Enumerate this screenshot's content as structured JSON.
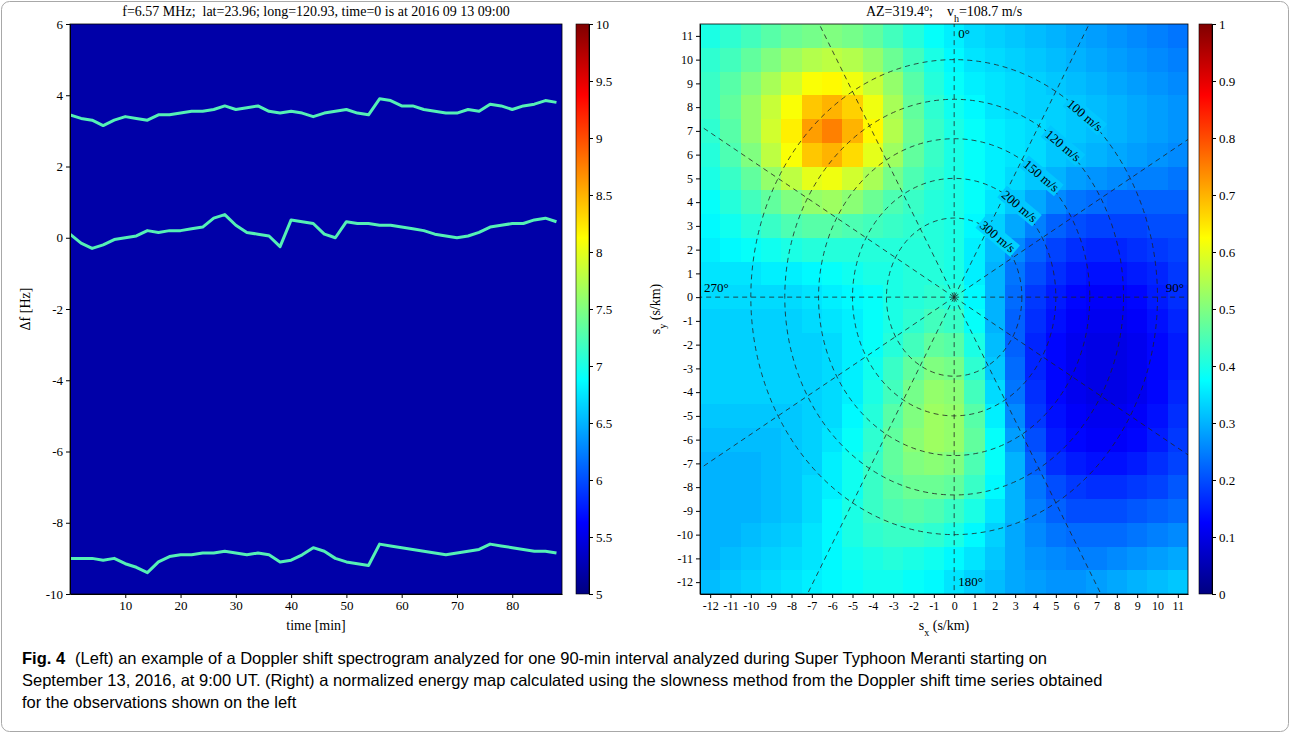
{
  "chart_data": [
    {
      "type": "spectrogram",
      "title": "f=6.57 MHz;  lat=23.96; long=120.93, time=0 is at 2016 09 13 09:00",
      "xlabel": "time [min]",
      "ylabel": "Δf [Hz]",
      "xlim": [
        0,
        89
      ],
      "xticks": [
        10,
        20,
        30,
        40,
        50,
        60,
        70,
        80
      ],
      "ylim": [
        -10,
        6
      ],
      "yticks": [
        -10,
        -8,
        -6,
        -4,
        -2,
        0,
        2,
        4,
        6
      ],
      "background_level": 5.2,
      "colorbar": {
        "lim": [
          5,
          10
        ],
        "ticks": [
          5,
          5.5,
          6,
          6.5,
          7,
          7.5,
          8,
          8.5,
          9,
          9.5,
          10
        ]
      },
      "x": [
        0,
        2,
        4,
        6,
        8,
        10,
        12,
        14,
        16,
        18,
        20,
        22,
        24,
        26,
        28,
        30,
        32,
        34,
        36,
        38,
        40,
        42,
        44,
        46,
        48,
        50,
        52,
        54,
        56,
        58,
        60,
        62,
        64,
        66,
        68,
        70,
        72,
        74,
        76,
        78,
        80,
        82,
        84,
        86,
        88
      ],
      "series": [
        {
          "color": "#55f0b5",
          "values": [
            3.45,
            3.35,
            3.3,
            3.15,
            3.3,
            3.4,
            3.35,
            3.3,
            3.45,
            3.45,
            3.5,
            3.55,
            3.55,
            3.6,
            3.7,
            3.6,
            3.65,
            3.7,
            3.55,
            3.5,
            3.55,
            3.5,
            3.4,
            3.5,
            3.55,
            3.6,
            3.5,
            3.45,
            3.9,
            3.85,
            3.7,
            3.7,
            3.6,
            3.55,
            3.5,
            3.5,
            3.6,
            3.55,
            3.75,
            3.7,
            3.6,
            3.7,
            3.75,
            3.85,
            3.8
          ]
        },
        {
          "color": "#55f0b5",
          "values": [
            0.1,
            -0.15,
            -0.3,
            -0.2,
            -0.05,
            0,
            0.05,
            0.2,
            0.15,
            0.2,
            0.2,
            0.25,
            0.3,
            0.55,
            0.65,
            0.35,
            0.15,
            0.1,
            0.05,
            -0.25,
            0.5,
            0.45,
            0.4,
            0.1,
            0,
            0.45,
            0.4,
            0.4,
            0.35,
            0.35,
            0.3,
            0.25,
            0.2,
            0.1,
            0.05,
            0,
            0.05,
            0.15,
            0.3,
            0.35,
            0.4,
            0.4,
            0.5,
            0.55,
            0.45
          ]
        },
        {
          "color": "#55f0b5",
          "values": [
            -9.0,
            -9.0,
            -9.0,
            -9.05,
            -9.0,
            -9.15,
            -9.25,
            -9.4,
            -9.1,
            -8.95,
            -8.9,
            -8.9,
            -8.85,
            -8.85,
            -8.8,
            -8.85,
            -8.9,
            -8.85,
            -8.9,
            -9.1,
            -9.05,
            -8.9,
            -8.7,
            -8.8,
            -9.0,
            -9.1,
            -9.15,
            -9.2,
            -8.6,
            -8.65,
            -8.7,
            -8.75,
            -8.8,
            -8.85,
            -8.9,
            -8.85,
            -8.8,
            -8.75,
            -8.6,
            -8.65,
            -8.7,
            -8.75,
            -8.8,
            -8.8,
            -8.85
          ]
        }
      ]
    },
    {
      "type": "heatmap",
      "title": [
        {
          "text": "AZ=319.4"
        },
        {
          "text": "o",
          "sup": true
        },
        {
          "text": ";    v"
        },
        {
          "text": "h",
          "sub": true
        },
        {
          "text": "=108.7 m/s"
        }
      ],
      "xlabel": [
        {
          "text": "s"
        },
        {
          "text": "x",
          "sub": true
        },
        {
          "text": " (s/km)"
        }
      ],
      "ylabel": [
        {
          "text": "s"
        },
        {
          "text": "y",
          "sub": true
        },
        {
          "text": " (s/km)"
        }
      ],
      "xlim": [
        -12.5,
        11.5
      ],
      "xticks": [
        -12,
        -11,
        -10,
        -9,
        -8,
        -7,
        -6,
        -5,
        -4,
        -3,
        -2,
        -1,
        0,
        1,
        2,
        3,
        4,
        5,
        6,
        7,
        8,
        9,
        10,
        11
      ],
      "ylim": [
        -12.5,
        11.5
      ],
      "yticks": [
        -12,
        -11,
        -10,
        -9,
        -8,
        -7,
        -6,
        -5,
        -4,
        -3,
        -2,
        -1,
        0,
        1,
        2,
        3,
        4,
        5,
        6,
        7,
        8,
        9,
        10,
        11
      ],
      "colorbar": {
        "lim": [
          0,
          1
        ],
        "ticks": [
          0,
          0.1,
          0.2,
          0.3,
          0.4,
          0.5,
          0.6,
          0.7,
          0.8,
          0.9,
          1
        ]
      },
      "rings": [
        {
          "radius": 10,
          "label": "100 m/s"
        },
        {
          "radius": 8.33,
          "label": "120 m/s"
        },
        {
          "radius": 6.67,
          "label": "150 m/s"
        },
        {
          "radius": 5,
          "label": "200 m/s"
        },
        {
          "radius": 3.33,
          "label": "300 m/s"
        }
      ],
      "spokes": [
        0,
        30,
        60,
        90,
        120,
        150,
        180,
        210,
        240,
        270,
        300,
        330
      ],
      "spoke_labels": [
        {
          "value": 0,
          "label": "0°"
        },
        {
          "value": 90,
          "label": "90°"
        },
        {
          "value": 180,
          "label": "180°"
        },
        {
          "value": 270,
          "label": "270°"
        }
      ],
      "sx": [
        -12,
        -11,
        -10,
        -9,
        -8,
        -7,
        -6,
        -5,
        -4,
        -3,
        -2,
        -1,
        0,
        1,
        2,
        3,
        4,
        5,
        6,
        7,
        8,
        9,
        10,
        11
      ],
      "sy": [
        11,
        10,
        9,
        8,
        7,
        6,
        5,
        4,
        3,
        2,
        1,
        0,
        -1,
        -2,
        -3,
        -4,
        -5,
        -6,
        -7,
        -8,
        -9,
        -10,
        -11,
        -12
      ],
      "cells": [
        [
          0.4,
          0.42,
          0.44,
          0.46,
          0.48,
          0.49,
          0.5,
          0.49,
          0.47,
          0.44,
          0.41,
          0.38,
          0.36,
          0.34,
          0.33,
          0.32,
          0.31,
          0.3,
          0.29,
          0.28,
          0.27,
          0.26,
          0.25,
          0.24
        ],
        [
          0.42,
          0.44,
          0.47,
          0.5,
          0.53,
          0.55,
          0.56,
          0.55,
          0.52,
          0.48,
          0.44,
          0.4,
          0.37,
          0.35,
          0.34,
          0.33,
          0.32,
          0.31,
          0.3,
          0.29,
          0.28,
          0.27,
          0.26,
          0.25
        ],
        [
          0.43,
          0.46,
          0.5,
          0.54,
          0.58,
          0.62,
          0.63,
          0.61,
          0.57,
          0.52,
          0.46,
          0.41,
          0.38,
          0.36,
          0.35,
          0.34,
          0.33,
          0.32,
          0.31,
          0.3,
          0.29,
          0.28,
          0.27,
          0.26
        ],
        [
          0.43,
          0.47,
          0.52,
          0.57,
          0.62,
          0.68,
          0.7,
          0.67,
          0.61,
          0.54,
          0.47,
          0.42,
          0.39,
          0.37,
          0.35,
          0.34,
          0.33,
          0.33,
          0.32,
          0.31,
          0.3,
          0.29,
          0.28,
          0.27
        ],
        [
          0.42,
          0.46,
          0.52,
          0.58,
          0.64,
          0.72,
          0.75,
          0.7,
          0.63,
          0.55,
          0.48,
          0.43,
          0.4,
          0.38,
          0.36,
          0.35,
          0.34,
          0.33,
          0.32,
          0.31,
          0.3,
          0.29,
          0.28,
          0.27
        ],
        [
          0.41,
          0.45,
          0.5,
          0.56,
          0.62,
          0.68,
          0.7,
          0.66,
          0.6,
          0.53,
          0.47,
          0.43,
          0.4,
          0.38,
          0.36,
          0.35,
          0.34,
          0.32,
          0.31,
          0.3,
          0.29,
          0.28,
          0.27,
          0.26
        ],
        [
          0.4,
          0.43,
          0.47,
          0.52,
          0.56,
          0.6,
          0.61,
          0.58,
          0.54,
          0.49,
          0.45,
          0.42,
          0.4,
          0.38,
          0.36,
          0.34,
          0.32,
          0.3,
          0.28,
          0.27,
          0.26,
          0.25,
          0.25,
          0.24
        ],
        [
          0.38,
          0.41,
          0.44,
          0.47,
          0.5,
          0.52,
          0.53,
          0.51,
          0.48,
          0.45,
          0.43,
          0.41,
          0.4,
          0.38,
          0.35,
          0.32,
          0.29,
          0.26,
          0.24,
          0.23,
          0.22,
          0.22,
          0.22,
          0.22
        ],
        [
          0.37,
          0.39,
          0.41,
          0.43,
          0.45,
          0.46,
          0.46,
          0.45,
          0.44,
          0.43,
          0.42,
          0.41,
          0.4,
          0.37,
          0.33,
          0.29,
          0.25,
          0.22,
          0.2,
          0.19,
          0.19,
          0.19,
          0.2,
          0.2
        ],
        [
          0.36,
          0.37,
          0.38,
          0.39,
          0.4,
          0.41,
          0.41,
          0.41,
          0.41,
          0.41,
          0.41,
          0.41,
          0.4,
          0.36,
          0.31,
          0.26,
          0.22,
          0.19,
          0.17,
          0.16,
          0.16,
          0.17,
          0.18,
          0.19
        ],
        [
          0.35,
          0.35,
          0.35,
          0.36,
          0.36,
          0.37,
          0.38,
          0.39,
          0.4,
          0.4,
          0.41,
          0.41,
          0.4,
          0.36,
          0.3,
          0.24,
          0.2,
          0.17,
          0.15,
          0.14,
          0.14,
          0.15,
          0.16,
          0.18
        ],
        [
          0.34,
          0.34,
          0.34,
          0.34,
          0.34,
          0.35,
          0.36,
          0.37,
          0.38,
          0.4,
          0.41,
          0.42,
          0.41,
          0.37,
          0.3,
          0.23,
          0.18,
          0.15,
          0.13,
          0.12,
          0.12,
          0.13,
          0.15,
          0.17
        ],
        [
          0.33,
          0.33,
          0.33,
          0.33,
          0.33,
          0.34,
          0.35,
          0.36,
          0.38,
          0.4,
          0.42,
          0.44,
          0.43,
          0.38,
          0.3,
          0.22,
          0.17,
          0.14,
          0.12,
          0.11,
          0.11,
          0.12,
          0.14,
          0.16
        ],
        [
          0.33,
          0.33,
          0.33,
          0.33,
          0.33,
          0.33,
          0.34,
          0.36,
          0.38,
          0.41,
          0.44,
          0.47,
          0.46,
          0.4,
          0.31,
          0.22,
          0.16,
          0.13,
          0.11,
          0.1,
          0.1,
          0.11,
          0.13,
          0.15
        ],
        [
          0.33,
          0.33,
          0.33,
          0.33,
          0.33,
          0.33,
          0.34,
          0.36,
          0.39,
          0.43,
          0.47,
          0.5,
          0.49,
          0.42,
          0.32,
          0.23,
          0.16,
          0.13,
          0.11,
          0.1,
          0.1,
          0.11,
          0.13,
          0.15
        ],
        [
          0.33,
          0.33,
          0.33,
          0.33,
          0.33,
          0.33,
          0.34,
          0.36,
          0.4,
          0.44,
          0.49,
          0.52,
          0.51,
          0.44,
          0.34,
          0.24,
          0.17,
          0.13,
          0.11,
          0.1,
          0.1,
          0.11,
          0.13,
          0.16
        ],
        [
          0.32,
          0.32,
          0.32,
          0.32,
          0.32,
          0.33,
          0.34,
          0.37,
          0.41,
          0.46,
          0.5,
          0.53,
          0.52,
          0.46,
          0.36,
          0.26,
          0.18,
          0.14,
          0.12,
          0.11,
          0.11,
          0.12,
          0.14,
          0.17
        ],
        [
          0.31,
          0.31,
          0.31,
          0.31,
          0.32,
          0.33,
          0.35,
          0.38,
          0.42,
          0.47,
          0.51,
          0.53,
          0.52,
          0.47,
          0.38,
          0.28,
          0.2,
          0.15,
          0.13,
          0.12,
          0.12,
          0.13,
          0.15,
          0.18
        ],
        [
          0.3,
          0.3,
          0.3,
          0.31,
          0.32,
          0.33,
          0.36,
          0.39,
          0.43,
          0.47,
          0.5,
          0.51,
          0.5,
          0.45,
          0.38,
          0.3,
          0.22,
          0.17,
          0.15,
          0.14,
          0.14,
          0.15,
          0.17,
          0.19
        ],
        [
          0.3,
          0.3,
          0.3,
          0.31,
          0.32,
          0.34,
          0.36,
          0.39,
          0.43,
          0.46,
          0.48,
          0.48,
          0.47,
          0.43,
          0.37,
          0.3,
          0.24,
          0.2,
          0.18,
          0.17,
          0.17,
          0.18,
          0.19,
          0.21
        ],
        [
          0.3,
          0.3,
          0.3,
          0.31,
          0.32,
          0.34,
          0.37,
          0.4,
          0.43,
          0.45,
          0.46,
          0.45,
          0.43,
          0.4,
          0.35,
          0.3,
          0.25,
          0.22,
          0.2,
          0.2,
          0.2,
          0.21,
          0.22,
          0.23
        ],
        [
          0.3,
          0.3,
          0.31,
          0.32,
          0.33,
          0.35,
          0.37,
          0.4,
          0.42,
          0.43,
          0.43,
          0.42,
          0.4,
          0.37,
          0.33,
          0.29,
          0.26,
          0.24,
          0.23,
          0.23,
          0.23,
          0.24,
          0.25,
          0.26
        ],
        [
          0.3,
          0.31,
          0.32,
          0.33,
          0.34,
          0.35,
          0.37,
          0.39,
          0.4,
          0.41,
          0.4,
          0.39,
          0.37,
          0.35,
          0.32,
          0.29,
          0.27,
          0.26,
          0.25,
          0.25,
          0.26,
          0.27,
          0.28,
          0.29
        ],
        [
          0.31,
          0.32,
          0.33,
          0.34,
          0.35,
          0.36,
          0.37,
          0.38,
          0.39,
          0.39,
          0.38,
          0.37,
          0.35,
          0.33,
          0.31,
          0.29,
          0.28,
          0.27,
          0.27,
          0.28,
          0.29,
          0.3,
          0.31,
          0.32
        ]
      ]
    }
  ],
  "caption": {
    "label": "Fig. 4",
    "lines": [
      "(Left) an example of a Doppler shift spectrogram analyzed for one 90-min interval analyzed during Super Typhoon Meranti starting on",
      "September 13, 2016, at 9:00 UT. (Right) a normalized energy map calculated using the slowness method from the Doppler shift time series obtained",
      "for the observations shown on the left"
    ]
  }
}
